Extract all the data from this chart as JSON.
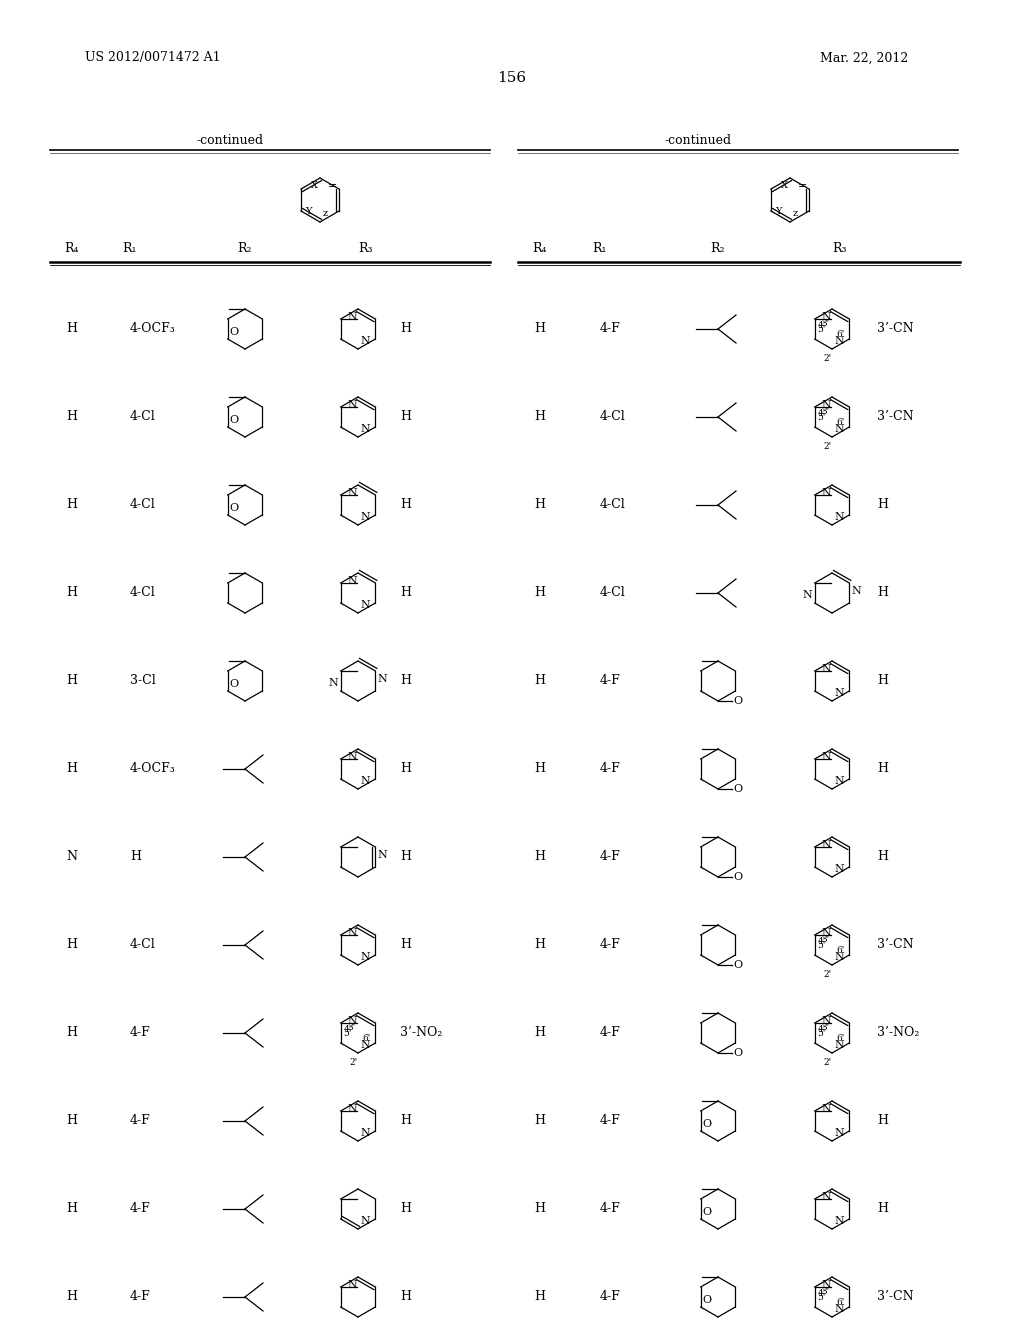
{
  "page_number": "156",
  "patent_number": "US 2012/0071472 A1",
  "patent_date": "Mar. 22, 2012",
  "bg_color": "#ffffff",
  "left_rows": [
    [
      "H",
      "4-OCF₃",
      "thp",
      "pyrimidine_NN",
      "H"
    ],
    [
      "H",
      "4-Cl",
      "thp",
      "pyrimidine_NN",
      "H"
    ],
    [
      "H",
      "4-Cl",
      "thp",
      "pyrazine",
      "H"
    ],
    [
      "H",
      "4-Cl",
      "cyclohexane",
      "pyrazine",
      "H"
    ],
    [
      "H",
      "3-Cl",
      "thp",
      "pyrimidine_rev",
      "H"
    ],
    [
      "H",
      "4-OCF₃",
      "isobutyl",
      "pyrimidine_NN",
      "H"
    ],
    [
      "N",
      "H",
      "isobutyl",
      "pyridine_bottom",
      "H"
    ],
    [
      "H",
      "4-Cl",
      "isobutyl",
      "pyrimidine_NN",
      "H"
    ],
    [
      "H",
      "4-F",
      "isobutyl",
      "pyrimidine_NN_num",
      "3’-NO₂"
    ],
    [
      "H",
      "4-F",
      "isobutyl",
      "pyrimidine_NN",
      "H"
    ],
    [
      "H",
      "4-F",
      "isobutyl",
      "pyridine_NN",
      "H"
    ],
    [
      "H",
      "4-F",
      "isobutyl",
      "pyrimidine_bottom_N",
      "H"
    ]
  ],
  "right_rows": [
    [
      "H",
      "4-F",
      "isobutyl",
      "pyrimidine_NN_num",
      "3’-CN"
    ],
    [
      "H",
      "4-Cl",
      "isobutyl",
      "pyrimidine_NN_num",
      "3’-CN"
    ],
    [
      "H",
      "4-Cl",
      "isobutyl",
      "pyrimidine_NN",
      "H"
    ],
    [
      "H",
      "4-Cl",
      "isobutyl",
      "pyrimidine_rev",
      "H"
    ],
    [
      "H",
      "4-F",
      "cyclohexane_ome",
      "pyrimidine_NN",
      "H"
    ],
    [
      "H",
      "4-F",
      "cyclohexane_ome",
      "pyrimidine_NN",
      "H"
    ],
    [
      "H",
      "4-F",
      "cyclohexane_ome",
      "pyrimidine_NN",
      "H"
    ],
    [
      "H",
      "4-F",
      "cyclohexane_ome",
      "pyrimidine_NN_num",
      "3’-CN"
    ],
    [
      "H",
      "4-F",
      "cyclohexane_ome",
      "pyrimidine_NN_num",
      "3’-NO₂"
    ],
    [
      "H",
      "4-F",
      "oxane",
      "pyrimidine_NN",
      "H"
    ],
    [
      "H",
      "4-F",
      "oxane",
      "pyrimidine_NN",
      "H"
    ],
    [
      "H",
      "4-F",
      "oxane",
      "pyrimidine_NN_num",
      "3’-CN"
    ]
  ]
}
